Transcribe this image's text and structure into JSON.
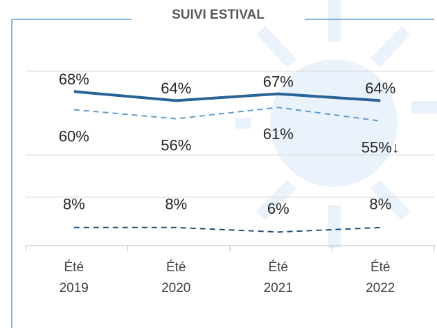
{
  "chart_data": {
    "type": "line",
    "title": "SUIVI ESTIVAL",
    "categories": [
      "Été 2019",
      "Été 2020",
      "Été 2021",
      "Été 2022"
    ],
    "series": [
      {
        "color": "#2a6496",
        "style": "solid",
        "values": [
          68,
          64,
          67,
          64
        ],
        "value_labels": [
          "68%",
          "64%",
          "67%",
          "64%"
        ]
      },
      {
        "color": "#5b9bd5",
        "style": "dashed",
        "values": [
          60,
          56,
          61,
          55
        ],
        "value_labels": [
          "60%",
          "56%",
          "61%",
          "55%↓"
        ]
      },
      {
        "color": "#1f4e79",
        "style": "dashed",
        "values": [
          8,
          8,
          6,
          8
        ],
        "value_labels": [
          "8%",
          "8%",
          "6%",
          "8%"
        ]
      }
    ],
    "ylim": [
      0,
      80
    ]
  }
}
